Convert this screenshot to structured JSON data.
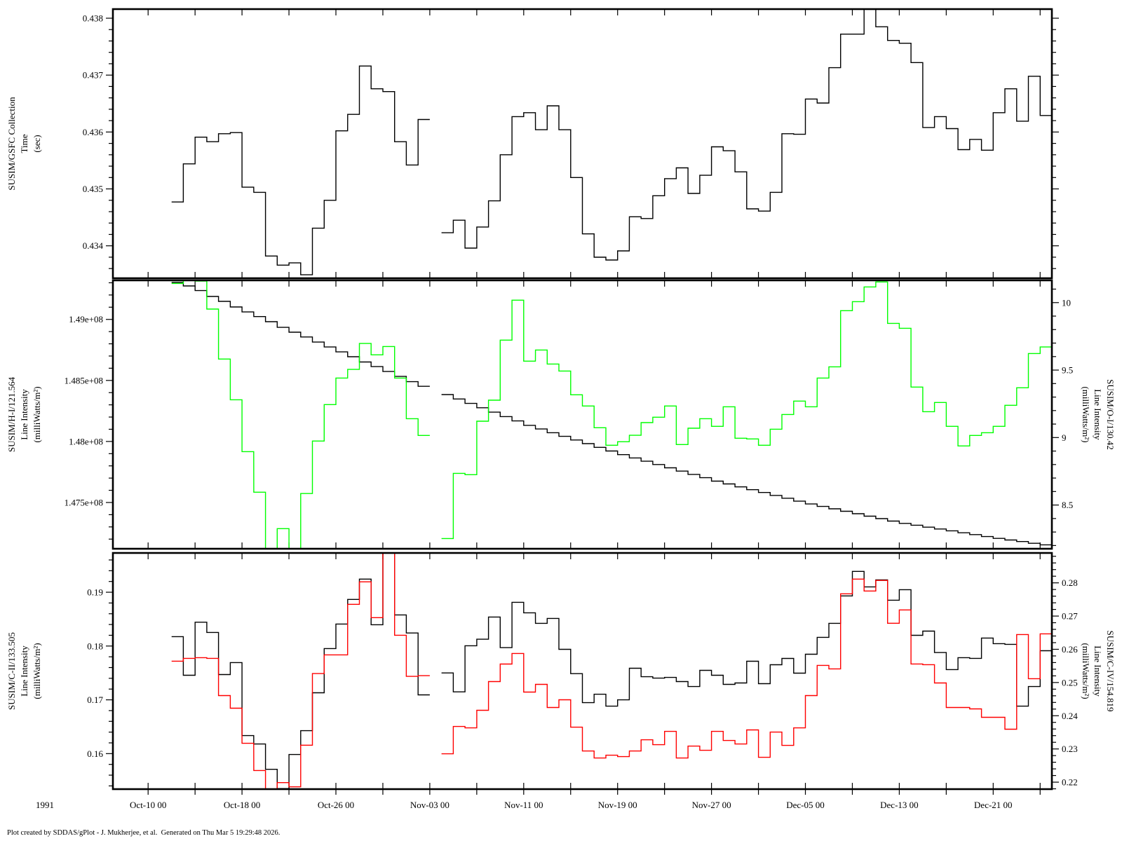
{
  "year_label": "1991",
  "footer": "Plot created by SDDAS/gPlot - J. Mukherjee, et al.  Generated on Thu Mar 5 19:29:48 2026.",
  "chart_data": {
    "type": "line",
    "style": "step",
    "xlim": [
      "1991-10-07",
      "1991-12-26"
    ],
    "x_ticks": [
      {
        "date": "1991-10-10",
        "label": "Oct-10 00"
      },
      {
        "date": "1991-10-18",
        "label": "Oct-18 00"
      },
      {
        "date": "1991-10-26",
        "label": "Oct-26 00"
      },
      {
        "date": "1991-11-03",
        "label": "Nov-03 00"
      },
      {
        "date": "1991-11-11",
        "label": "Nov-11 00"
      },
      {
        "date": "1991-11-19",
        "label": "Nov-19 00"
      },
      {
        "date": "1991-11-27",
        "label": "Nov-27 00"
      },
      {
        "date": "1991-12-05",
        "label": "Dec-05 00"
      },
      {
        "date": "1991-12-13",
        "label": "Dec-13 00"
      },
      {
        "date": "1991-12-21",
        "label": "Dec-21 00"
      }
    ],
    "x_minor_tick_days": 4,
    "x": [
      "1991-10-12",
      "1991-10-13",
      "1991-10-14",
      "1991-10-15",
      "1991-10-16",
      "1991-10-17",
      "1991-10-18",
      "1991-10-19",
      "1991-10-20",
      "1991-10-21",
      "1991-10-22",
      "1991-10-23",
      "1991-10-24",
      "1991-10-25",
      "1991-10-26",
      "1991-10-27",
      "1991-10-28",
      "1991-10-29",
      "1991-10-30",
      "1991-10-31",
      "1991-11-01",
      "1991-11-02",
      "1991-11-03",
      "1991-11-04",
      "1991-11-05",
      "1991-11-06",
      "1991-11-07",
      "1991-11-08",
      "1991-11-09",
      "1991-11-10",
      "1991-11-11",
      "1991-11-12",
      "1991-11-13",
      "1991-11-14",
      "1991-11-15",
      "1991-11-16",
      "1991-11-17",
      "1991-11-18",
      "1991-11-19",
      "1991-11-20",
      "1991-11-21",
      "1991-11-22",
      "1991-11-23",
      "1991-11-24",
      "1991-11-25",
      "1991-11-26",
      "1991-11-27",
      "1991-11-28",
      "1991-11-29",
      "1991-11-30",
      "1991-12-01",
      "1991-12-02",
      "1991-12-03",
      "1991-12-04",
      "1991-12-05",
      "1991-12-06",
      "1991-12-07",
      "1991-12-08",
      "1991-12-09",
      "1991-12-10",
      "1991-12-11",
      "1991-12-12",
      "1991-12-13",
      "1991-12-14",
      "1991-12-15",
      "1991-12-16",
      "1991-12-17",
      "1991-12-18",
      "1991-12-19",
      "1991-12-20",
      "1991-12-21",
      "1991-12-22",
      "1991-12-23",
      "1991-12-24",
      "1991-12-25"
    ],
    "panels": [
      {
        "left_axis": {
          "title_lines": [
            "SUSIM/GSFC Collection",
            "Time",
            "(sec)"
          ],
          "range": [
            0.43343,
            0.43816
          ],
          "minor_step": 0.0002,
          "ticks": [
            {
              "value": 0.434,
              "label": "0.434"
            },
            {
              "value": 0.435,
              "label": "0.435"
            },
            {
              "value": 0.436,
              "label": "0.436"
            },
            {
              "value": 0.437,
              "label": "0.437"
            },
            {
              "value": 0.438,
              "label": "0.438"
            }
          ]
        },
        "right_axis": {
          "title_lines": [],
          "range": [
            0.43343,
            0.43816
          ],
          "minor_step": 0.0002,
          "ticks": [
            {
              "value": 0.434,
              "label": ""
            },
            {
              "value": 0.435,
              "label": ""
            },
            {
              "value": 0.436,
              "label": ""
            },
            {
              "value": 0.437,
              "label": ""
            },
            {
              "value": 0.438,
              "label": ""
            }
          ]
        },
        "series": [
          {
            "axis": "left",
            "color": "#000000",
            "values": [
              0.43477,
              0.43544,
              0.43591,
              0.43583,
              0.43597,
              0.43599,
              0.43503,
              0.43494,
              0.43382,
              0.43366,
              0.4337,
              0.43349,
              0.43431,
              0.4348,
              0.43602,
              0.43631,
              0.43716,
              0.43676,
              0.43671,
              0.43583,
              0.43542,
              0.43622,
              null,
              0.43423,
              0.43445,
              0.43396,
              0.43433,
              0.43479,
              0.4356,
              0.43627,
              0.43634,
              0.43604,
              0.43646,
              0.43604,
              0.4352,
              0.43421,
              0.4338,
              0.43375,
              0.43391,
              0.43451,
              0.43448,
              0.43488,
              0.43518,
              0.43537,
              0.43492,
              0.43524,
              0.43574,
              0.43567,
              0.4353,
              0.43465,
              0.43461,
              0.43494,
              0.43597,
              0.43596,
              0.43658,
              0.43651,
              0.43713,
              0.43772,
              0.43772,
              0.4382,
              0.43785,
              0.43761,
              0.43756,
              0.43722,
              0.43608,
              0.43627,
              0.43606,
              0.43569,
              0.43587,
              0.43568,
              0.43634,
              0.43676,
              0.43619,
              0.43698,
              0.43629
            ]
          }
        ]
      },
      {
        "left_axis": {
          "title_lines": [
            "SUSIM/H-I/121.564",
            "Line Intensity",
            "(milliWatts/m²)"
          ],
          "range": [
            147121000.0,
            149320000.0
          ],
          "minor_step": 100000.0,
          "ticks": [
            {
              "value": 147500000.0,
              "label": "1.475e+08"
            },
            {
              "value": 148000000.0,
              "label": "1.48e+08"
            },
            {
              "value": 148500000.0,
              "label": "1.485e+08"
            },
            {
              "value": 149000000.0,
              "label": "1.49e+08"
            }
          ]
        },
        "right_axis": {
          "title_lines": [
            "SUSIM/O-I/130.42",
            "Line Intensity",
            "(milliWatts/m²)"
          ],
          "range": [
            8.176,
            10.165
          ],
          "minor_step": 0.1,
          "ticks": [
            {
              "value": 8.5,
              "label": "8.5"
            },
            {
              "value": 9,
              "label": "9"
            },
            {
              "value": 9.5,
              "label": "9.5"
            },
            {
              "value": 10,
              "label": "10"
            }
          ]
        },
        "series": [
          {
            "axis": "left",
            "color": "#000000",
            "values": [
              149303000.0,
              149274000.0,
              149236000.0,
              149188000.0,
              149148000.0,
              149102000.0,
              149061000.0,
              149023000.0,
              148981000.0,
              148935000.0,
              148895000.0,
              148856000.0,
              148814000.0,
              148774000.0,
              148734000.0,
              148694000.0,
              148651000.0,
              148613000.0,
              148573000.0,
              148533000.0,
              148490000.0,
              148452000.0,
              null,
              148384000.0,
              148348000.0,
              148312000.0,
              148276000.0,
              148240000.0,
              148204000.0,
              148168000.0,
              148132000.0,
              148102000.0,
              148072000.0,
              148042000.0,
              148012000.0,
              147982000.0,
              147952000.0,
              147922000.0,
              147892000.0,
              147865000.0,
              147838000.0,
              147811000.0,
              147784000.0,
              147757000.0,
              147730000.0,
              147703000.0,
              147675000.0,
              147652000.0,
              147628000.0,
              147605000.0,
              147582000.0,
              147558000.0,
              147535000.0,
              147511000.0,
              147488000.0,
              147468000.0,
              147448000.0,
              147428000.0,
              147408000.0,
              147388000.0,
              147368000.0,
              147348000.0,
              147329000.0,
              147314000.0,
              147298000.0,
              147283000.0,
              147268000.0,
              147252000.0,
              147237000.0,
              147221000.0,
              147206000.0,
              147193000.0,
              147180000.0,
              147166000.0,
              147153000.0
            ]
          },
          {
            "axis": "right",
            "color": "#00ff00",
            "values": [
              10.142,
              10.17,
              10.16,
              9.952,
              9.582,
              9.28,
              8.896,
              8.595,
              8.15,
              8.325,
              8.15,
              8.585,
              8.974,
              9.244,
              9.441,
              9.505,
              9.697,
              9.613,
              9.675,
              9.441,
              9.14,
              9.016,
              null,
              8.252,
              8.735,
              8.725,
              9.121,
              9.277,
              9.722,
              10.018,
              9.566,
              9.649,
              9.545,
              9.493,
              9.317,
              9.234,
              9.073,
              8.943,
              8.969,
              9.017,
              9.111,
              9.151,
              9.234,
              8.948,
              9.069,
              9.14,
              9.083,
              9.228,
              8.995,
              8.99,
              8.943,
              9.062,
              9.171,
              9.27,
              9.228,
              9.441,
              9.524,
              9.94,
              10.007,
              10.116,
              10.153,
              9.846,
              9.81,
              9.374,
              9.192,
              9.26,
              9.083,
              8.938,
              9.016,
              9.036,
              9.083,
              9.239,
              9.369,
              9.623,
              9.671
            ]
          }
        ]
      },
      {
        "left_axis": {
          "title_lines": [
            "SUSIM/C-II/133.505",
            "Line Intensity",
            "(milliWatts/m²)"
          ],
          "range": [
            0.1534,
            0.1973
          ],
          "minor_step": 0.002,
          "ticks": [
            {
              "value": 0.16,
              "label": "0.16"
            },
            {
              "value": 0.17,
              "label": "0.17"
            },
            {
              "value": 0.18,
              "label": "0.18"
            },
            {
              "value": 0.19,
              "label": "0.19"
            }
          ]
        },
        "right_axis": {
          "title_lines": [
            "SUSIM/C-IV/154.819",
            "Line Intensity",
            "(milliWatts/m²)"
          ],
          "range": [
            0.2179,
            0.289
          ],
          "minor_step": 0.002,
          "ticks": [
            {
              "value": 0.22,
              "label": "0.22"
            },
            {
              "value": 0.23,
              "label": "0.23"
            },
            {
              "value": 0.24,
              "label": "0.24"
            },
            {
              "value": 0.25,
              "label": "0.25"
            },
            {
              "value": 0.26,
              "label": "0.26"
            },
            {
              "value": 0.27,
              "label": "0.27"
            },
            {
              "value": 0.28,
              "label": "0.28"
            }
          ]
        },
        "series": [
          {
            "axis": "left",
            "color": "#000000",
            "values": [
              0.18174,
              0.17457,
              0.18443,
              0.18253,
              0.1747,
              0.17692,
              0.16335,
              0.16179,
              0.15709,
              0.1535,
              0.15983,
              0.16427,
              0.17131,
              0.17953,
              0.18409,
              0.18866,
              0.19244,
              0.18396,
              0.198,
              0.18579,
              0.18243,
              0.17092,
              null,
              0.175,
              0.17148,
              0.18005,
              0.18126,
              0.18539,
              0.1797,
              0.18813,
              0.18618,
              0.18422,
              0.18513,
              0.17939,
              0.17487,
              0.16948,
              0.17104,
              0.16883,
              0.16999,
              0.17587,
              0.1743,
              0.17404,
              0.17417,
              0.17339,
              0.17247,
              0.17548,
              0.17457,
              0.17287,
              0.17313,
              0.17717,
              0.173,
              0.17652,
              0.17769,
              0.17496,
              0.17848,
              0.18161,
              0.18422,
              0.18931,
              0.19387,
              0.191,
              0.1923,
              0.18852,
              0.19048,
              0.182,
              0.18278,
              0.17879,
              0.17562,
              0.17784,
              0.17771,
              0.18148,
              0.18044,
              0.18031,
              0.16883,
              0.17247,
              0.17913
            ]
          },
          {
            "axis": "right",
            "color": "#ff0000",
            "values": [
              0.25642,
              0.25727,
              0.25748,
              0.25727,
              0.24607,
              0.24227,
              0.2317,
              0.22352,
              0.217,
              0.21987,
              0.2186,
              0.23113,
              0.25268,
              0.25832,
              0.25832,
              0.27353,
              0.2803,
              0.26952,
              0.292,
              0.26424,
              0.25184,
              0.25205,
              null,
              0.22853,
              0.23677,
              0.23635,
              0.24163,
              0.25029,
              0.25557,
              0.25874,
              0.24712,
              0.24945,
              0.24248,
              0.2448,
              0.23656,
              0.22938,
              0.22726,
              0.22811,
              0.22769,
              0.22938,
              0.23276,
              0.23128,
              0.23529,
              0.22726,
              0.23086,
              0.22959,
              0.23529,
              0.23255,
              0.23149,
              0.23572,
              0.22747,
              0.23508,
              0.23107,
              0.23635,
              0.24607,
              0.25515,
              0.2541,
              0.2767,
              0.28114,
              0.27755,
              0.28072,
              0.26783,
              0.27184,
              0.25558,
              0.25536,
              0.24987,
              0.24248,
              0.24248,
              0.24205,
              0.23952,
              0.23952,
              0.23593,
              0.26445,
              0.25114,
              0.26466
            ]
          }
        ]
      }
    ]
  }
}
